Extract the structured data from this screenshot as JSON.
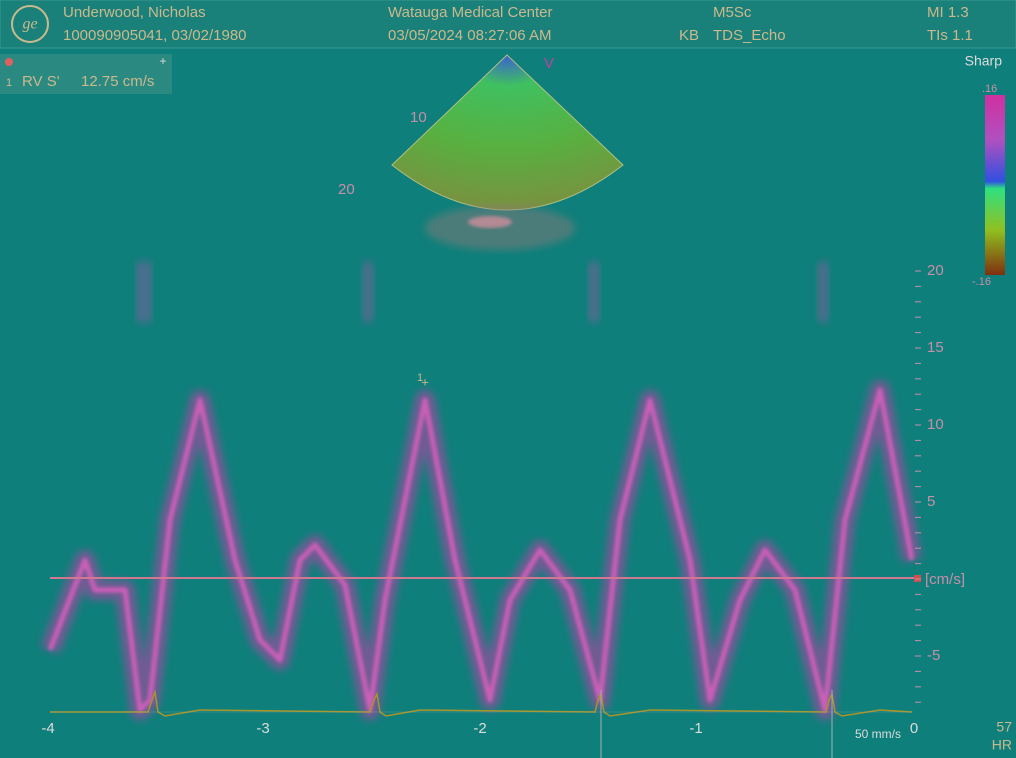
{
  "header": {
    "patient_name": "Underwood, Nicholas",
    "patient_id": "100090905041, 03/02/1980",
    "facility": "Watauga Medical Center",
    "datetime": "03/05/2024 08:27:06 AM",
    "operator": "KB",
    "probe": "M5Sc",
    "preset": "TDS_Echo",
    "mi": "MI 1.3",
    "tis": "TIs 1.1"
  },
  "measurement": {
    "index": "1",
    "label": "RV S'",
    "value": "12.75 cm/s"
  },
  "image": {
    "marker": "V",
    "depth_labels": [
      "10",
      "20"
    ],
    "filter": "Sharp",
    "color_scale": {
      "max": ".16",
      "min": "-.16"
    }
  },
  "doppler": {
    "velocity_labels": [
      "20",
      "15",
      "10",
      "5",
      "-5"
    ],
    "unit": "[cm/s]",
    "time_labels": [
      "-4",
      "-3",
      "-2",
      "-1",
      "0"
    ],
    "caliper": "1",
    "sweep": "50 mm/s",
    "heart_rate": "57",
    "heart_rate_label": "HR"
  }
}
